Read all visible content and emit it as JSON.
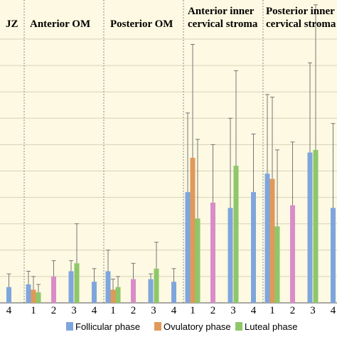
{
  "chart_data": {
    "type": "bar",
    "ylim": [
      0,
      100
    ],
    "grid": true,
    "legend_position": "bottom",
    "colors": {
      "plot_bg": "#fdf9e2",
      "grid": "#d8d3b8",
      "divider": "#8a8a8a",
      "Follicular phase": "#7fa6dc",
      "Ovulatory phase": "#e0995a",
      "Luteal phase": "#8ec76a",
      "Group 2": "#d98cc8",
      "Group 4": "#7fa6dc"
    },
    "legend": [
      "Follicular phase",
      "Ovulatory phase",
      "Luteal phase"
    ],
    "groups": [
      {
        "title_lines": [
          "JZ"
        ],
        "categories": [
          "4"
        ],
        "bars": [
          {
            "cat": "4",
            "series": "Group 4",
            "value": 6,
            "err": 5
          }
        ]
      },
      {
        "title_lines": [
          "Anterior OM"
        ],
        "categories": [
          "1",
          "2",
          "3",
          "4"
        ],
        "bars": [
          {
            "cat": "1",
            "series": "Follicular phase",
            "value": 7,
            "err": 5
          },
          {
            "cat": "1",
            "series": "Ovulatory phase",
            "value": 5,
            "err": 5
          },
          {
            "cat": "1",
            "series": "Luteal phase",
            "value": 4,
            "err": 3
          },
          {
            "cat": "2",
            "series": "Group 2",
            "value": 10,
            "err": 6
          },
          {
            "cat": "3",
            "series": "Follicular phase",
            "value": 12,
            "err": 4
          },
          {
            "cat": "3",
            "series": "Luteal phase",
            "value": 15,
            "err": 15
          },
          {
            "cat": "4",
            "series": "Group 4",
            "value": 8,
            "err": 5
          }
        ]
      },
      {
        "title_lines": [
          "Posterior OM"
        ],
        "categories": [
          "1",
          "2",
          "3",
          "4"
        ],
        "bars": [
          {
            "cat": "1",
            "series": "Follicular phase",
            "value": 12,
            "err": 8
          },
          {
            "cat": "1",
            "series": "Ovulatory phase",
            "value": 5,
            "err": 4
          },
          {
            "cat": "1",
            "series": "Luteal phase",
            "value": 6,
            "err": 4
          },
          {
            "cat": "2",
            "series": "Group 2",
            "value": 9,
            "err": 6
          },
          {
            "cat": "3",
            "series": "Follicular phase",
            "value": 9,
            "err": 2
          },
          {
            "cat": "3",
            "series": "Luteal phase",
            "value": 13,
            "err": 10
          },
          {
            "cat": "4",
            "series": "Group 4",
            "value": 8,
            "err": 5
          }
        ]
      },
      {
        "title_lines": [
          "Anterior inner",
          "cervical stroma"
        ],
        "categories": [
          "1",
          "2",
          "3",
          "4"
        ],
        "bars": [
          {
            "cat": "1",
            "series": "Follicular phase",
            "value": 42,
            "err": 30
          },
          {
            "cat": "1",
            "series": "Ovulatory phase",
            "value": 55,
            "err": 43
          },
          {
            "cat": "1",
            "series": "Luteal phase",
            "value": 32,
            "err": 30
          },
          {
            "cat": "2",
            "series": "Group 2",
            "value": 38,
            "err": 22
          },
          {
            "cat": "3",
            "series": "Follicular phase",
            "value": 36,
            "err": 34
          },
          {
            "cat": "3",
            "series": "Luteal phase",
            "value": 52,
            "err": 36
          },
          {
            "cat": "4",
            "series": "Group 4",
            "value": 42,
            "err": 22
          }
        ]
      },
      {
        "title_lines": [
          "Posterior inner",
          "cervical stroma"
        ],
        "categories": [
          "1",
          "2",
          "3",
          "4"
        ],
        "bars": [
          {
            "cat": "1",
            "series": "Follicular phase",
            "value": 49,
            "err": 30
          },
          {
            "cat": "1",
            "series": "Ovulatory phase",
            "value": 47,
            "err": 31
          },
          {
            "cat": "1",
            "series": "Luteal phase",
            "value": 29,
            "err": 29
          },
          {
            "cat": "2",
            "series": "Group 2",
            "value": 37,
            "err": 24
          },
          {
            "cat": "3",
            "series": "Follicular phase",
            "value": 57,
            "err": 34
          },
          {
            "cat": "3",
            "series": "Luteal phase",
            "value": 58,
            "err": 55
          },
          {
            "cat": "4",
            "series": "Group 4",
            "value": 36,
            "err": 32
          }
        ]
      }
    ]
  }
}
